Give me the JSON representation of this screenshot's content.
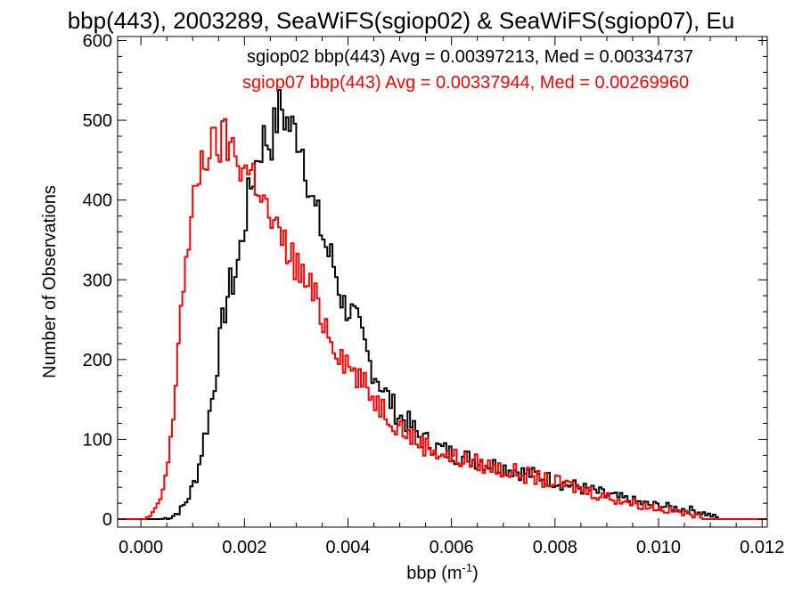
{
  "chart_data": {
    "type": "line",
    "title": "bbp(443), 2003289, SeaWiFS(sgiop02) & SeaWiFS(sgiop07), Eu",
    "xlabel": "bbp (m",
    "xlabel_sup": "-1",
    "xlabel_suffix": ")",
    "ylabel": "Number of Observations",
    "xlim": [
      -0.00045,
      0.0121
    ],
    "ylim": [
      -10,
      605
    ],
    "xticks": [
      0.0,
      0.002,
      0.004,
      0.006,
      0.008,
      0.01,
      0.012
    ],
    "xtick_labels": [
      "0.000",
      "0.002",
      "0.004",
      "0.006",
      "0.008",
      "0.010",
      "0.012"
    ],
    "yticks": [
      0,
      100,
      200,
      300,
      400,
      500,
      600
    ],
    "ytick_labels": [
      "0",
      "100",
      "200",
      "300",
      "400",
      "500",
      "600"
    ],
    "grid": false,
    "legend_placement": "top-right",
    "series": [
      {
        "name": "sgiop02",
        "color": "#000000",
        "legend": "sgiop02 bbp(443) Avg = 0.00397213, Med = 0.00334737",
        "step": 5e-05,
        "points": [
          [
            -0.0004,
            0
          ],
          [
            0.0004,
            0
          ],
          [
            0.0006,
            3
          ],
          [
            0.0007,
            8
          ],
          [
            0.0008,
            14
          ],
          [
            0.0009,
            25
          ],
          [
            0.001,
            40
          ],
          [
            0.0011,
            60
          ],
          [
            0.0012,
            95
          ],
          [
            0.0013,
            125
          ],
          [
            0.0014,
            160
          ],
          [
            0.0015,
            210
          ],
          [
            0.0016,
            255
          ],
          [
            0.0017,
            290
          ],
          [
            0.0018,
            300
          ],
          [
            0.0019,
            330
          ],
          [
            0.002,
            370
          ],
          [
            0.0021,
            410
          ],
          [
            0.0022,
            440
          ],
          [
            0.0023,
            465
          ],
          [
            0.0024,
            480
          ],
          [
            0.0025,
            470
          ],
          [
            0.0026,
            495
          ],
          [
            0.0027,
            520
          ],
          [
            0.0028,
            500
          ],
          [
            0.0029,
            490
          ],
          [
            0.003,
            485
          ],
          [
            0.0031,
            475
          ],
          [
            0.0032,
            440
          ],
          [
            0.0033,
            400
          ],
          [
            0.0034,
            380
          ],
          [
            0.0035,
            360
          ],
          [
            0.0036,
            335
          ],
          [
            0.0037,
            325
          ],
          [
            0.0038,
            300
          ],
          [
            0.0039,
            270
          ],
          [
            0.004,
            265
          ],
          [
            0.0041,
            255
          ],
          [
            0.0042,
            240
          ],
          [
            0.0043,
            220
          ],
          [
            0.0044,
            200
          ],
          [
            0.0045,
            185
          ],
          [
            0.0046,
            175
          ],
          [
            0.0047,
            160
          ],
          [
            0.0048,
            150
          ],
          [
            0.0049,
            138
          ],
          [
            0.005,
            128
          ],
          [
            0.0051,
            125
          ],
          [
            0.0052,
            118
          ],
          [
            0.0053,
            110
          ],
          [
            0.0054,
            102
          ],
          [
            0.0055,
            98
          ],
          [
            0.0056,
            95
          ],
          [
            0.0057,
            90
          ],
          [
            0.0058,
            88
          ],
          [
            0.0059,
            85
          ],
          [
            0.006,
            82
          ],
          [
            0.0062,
            78
          ],
          [
            0.0064,
            75
          ],
          [
            0.0066,
            72
          ],
          [
            0.0068,
            68
          ],
          [
            0.007,
            65
          ],
          [
            0.0072,
            62
          ],
          [
            0.0074,
            58
          ],
          [
            0.0076,
            55
          ],
          [
            0.0078,
            52
          ],
          [
            0.008,
            48
          ],
          [
            0.0082,
            44
          ],
          [
            0.0084,
            41
          ],
          [
            0.0086,
            37
          ],
          [
            0.0088,
            34
          ],
          [
            0.009,
            30
          ],
          [
            0.0092,
            27
          ],
          [
            0.0094,
            24
          ],
          [
            0.0096,
            21
          ],
          [
            0.0098,
            18
          ],
          [
            0.01,
            17
          ],
          [
            0.0102,
            15
          ],
          [
            0.0104,
            13
          ],
          [
            0.0106,
            12
          ],
          [
            0.0108,
            9
          ],
          [
            0.011,
            5
          ],
          [
            0.0112,
            0
          ],
          [
            0.0121,
            0
          ]
        ]
      },
      {
        "name": "sgiop07",
        "color": "#ff0000",
        "legend": "sgiop07 bbp(443) Avg = 0.00337944, Med = 0.00269960",
        "step": 5e-05,
        "points": [
          [
            -0.0004,
            0
          ],
          [
            0.0001,
            0
          ],
          [
            0.0002,
            5
          ],
          [
            0.0003,
            12
          ],
          [
            0.0004,
            30
          ],
          [
            0.0005,
            60
          ],
          [
            0.0006,
            105
          ],
          [
            0.0007,
            200
          ],
          [
            0.0008,
            290
          ],
          [
            0.0009,
            330
          ],
          [
            0.001,
            380
          ],
          [
            0.0011,
            430
          ],
          [
            0.0012,
            455
          ],
          [
            0.0013,
            460
          ],
          [
            0.0014,
            465
          ],
          [
            0.0015,
            470
          ],
          [
            0.0016,
            475
          ],
          [
            0.0017,
            470
          ],
          [
            0.0018,
            460
          ],
          [
            0.0019,
            450
          ],
          [
            0.002,
            440
          ],
          [
            0.0021,
            435
          ],
          [
            0.0022,
            430
          ],
          [
            0.0023,
            420
          ],
          [
            0.0024,
            390
          ],
          [
            0.0025,
            375
          ],
          [
            0.0026,
            360
          ],
          [
            0.0027,
            350
          ],
          [
            0.0028,
            340
          ],
          [
            0.0029,
            330
          ],
          [
            0.003,
            320
          ],
          [
            0.0031,
            305
          ],
          [
            0.0032,
            295
          ],
          [
            0.0033,
            285
          ],
          [
            0.0034,
            270
          ],
          [
            0.0035,
            255
          ],
          [
            0.0036,
            240
          ],
          [
            0.0037,
            225
          ],
          [
            0.0038,
            215
          ],
          [
            0.0039,
            205
          ],
          [
            0.004,
            195
          ],
          [
            0.0041,
            185
          ],
          [
            0.0042,
            178
          ],
          [
            0.0043,
            168
          ],
          [
            0.0044,
            160
          ],
          [
            0.0045,
            152
          ],
          [
            0.0046,
            145
          ],
          [
            0.0047,
            138
          ],
          [
            0.0048,
            130
          ],
          [
            0.0049,
            123
          ],
          [
            0.005,
            117
          ],
          [
            0.0051,
            110
          ],
          [
            0.0052,
            105
          ],
          [
            0.0053,
            100
          ],
          [
            0.0054,
            96
          ],
          [
            0.0055,
            92
          ],
          [
            0.0056,
            89
          ],
          [
            0.0057,
            86
          ],
          [
            0.0058,
            83
          ],
          [
            0.0059,
            80
          ],
          [
            0.006,
            78
          ],
          [
            0.0062,
            75
          ],
          [
            0.0064,
            72
          ],
          [
            0.0066,
            68
          ],
          [
            0.0068,
            65
          ],
          [
            0.007,
            62
          ],
          [
            0.0072,
            59
          ],
          [
            0.0074,
            56
          ],
          [
            0.0076,
            52
          ],
          [
            0.0078,
            49
          ],
          [
            0.008,
            46
          ],
          [
            0.0082,
            43
          ],
          [
            0.0084,
            40
          ],
          [
            0.0086,
            36
          ],
          [
            0.0088,
            32
          ],
          [
            0.009,
            28
          ],
          [
            0.0092,
            25
          ],
          [
            0.0094,
            22
          ],
          [
            0.0096,
            19
          ],
          [
            0.0098,
            16
          ],
          [
            0.01,
            14
          ],
          [
            0.0102,
            11
          ],
          [
            0.0104,
            9
          ],
          [
            0.0106,
            6
          ],
          [
            0.0108,
            3
          ],
          [
            0.011,
            0
          ],
          [
            0.0121,
            0
          ]
        ]
      }
    ]
  }
}
